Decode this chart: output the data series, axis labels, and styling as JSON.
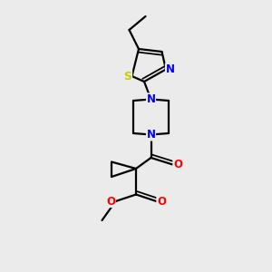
{
  "bg_color": "#ebebeb",
  "bond_color": "#000000",
  "n_color": "#0000ff",
  "s_color": "#cccc00",
  "o_color": "#ff0000",
  "line_width": 1.6,
  "font_size": 8.5,
  "xlim": [
    0,
    10
  ],
  "ylim": [
    0,
    10
  ]
}
